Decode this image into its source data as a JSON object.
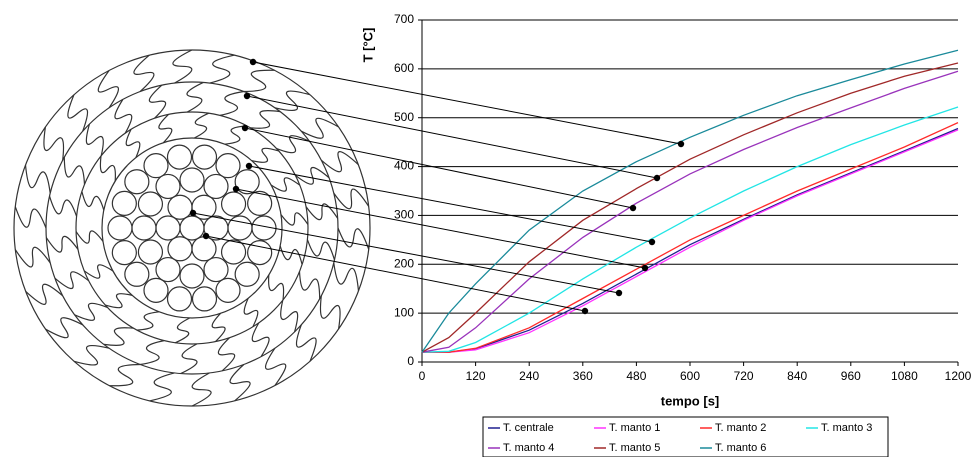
{
  "chart_data": {
    "type": "line",
    "x_label": "tempo [s]",
    "y_label": "T [°C]",
    "x": [
      0,
      60,
      120,
      240,
      360,
      480,
      600,
      720,
      840,
      960,
      1080,
      1200
    ],
    "series": [
      {
        "name": "T. centrale",
        "color": "#1f1f8f",
        "values": [
          20,
          20,
          27,
          65,
          120,
          180,
          240,
          292,
          342,
          387,
          432,
          478
        ]
      },
      {
        "name": "T. manto 1",
        "color": "#ff33ff",
        "values": [
          20,
          20,
          25,
          60,
          115,
          175,
          235,
          290,
          340,
          385,
          430,
          475
        ]
      },
      {
        "name": "T. manto 2",
        "color": "#ff2a2a",
        "values": [
          20,
          20,
          28,
          70,
          130,
          190,
          250,
          300,
          350,
          395,
          440,
          490
        ]
      },
      {
        "name": "T. manto 3",
        "color": "#22e5e5",
        "values": [
          20,
          22,
          40,
          100,
          170,
          235,
          295,
          350,
          400,
          445,
          485,
          522
        ]
      },
      {
        "name": "T. manto 4",
        "color": "#9933bb",
        "values": [
          20,
          30,
          70,
          170,
          255,
          325,
          385,
          435,
          480,
          520,
          560,
          595
        ]
      },
      {
        "name": "T. manto 5",
        "color": "#a02828",
        "values": [
          20,
          50,
          100,
          205,
          290,
          355,
          415,
          465,
          510,
          550,
          585,
          612
        ]
      },
      {
        "name": "T. manto 6",
        "color": "#1a8a9a",
        "values": [
          20,
          100,
          160,
          270,
          350,
          410,
          460,
          505,
          545,
          578,
          610,
          638
        ]
      }
    ],
    "xlim": [
      0,
      1200
    ],
    "xticks": [
      0,
      120,
      240,
      360,
      480,
      600,
      720,
      840,
      960,
      1080,
      1200
    ],
    "ylim": [
      0,
      700
    ],
    "yticks": [
      0,
      100,
      200,
      300,
      400,
      500,
      600,
      700
    ],
    "grid": true,
    "legend": "bottom"
  }
}
